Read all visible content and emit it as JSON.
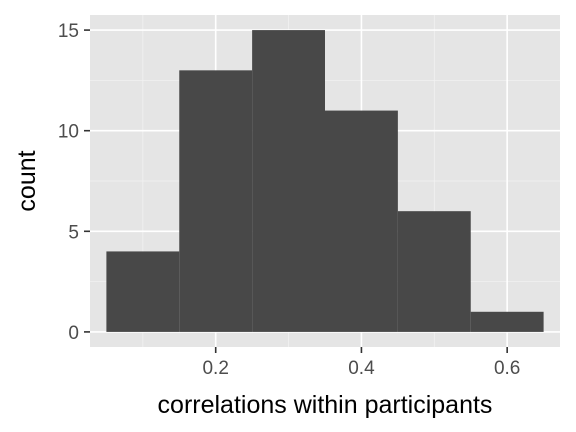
{
  "chart_data": {
    "type": "bar",
    "subtype": "histogram",
    "bins": [
      {
        "x0": 0.05,
        "x1": 0.15,
        "count": 4
      },
      {
        "x0": 0.15,
        "x1": 0.25,
        "count": 13
      },
      {
        "x0": 0.25,
        "x1": 0.35,
        "count": 15
      },
      {
        "x0": 0.35,
        "x1": 0.45,
        "count": 11
      },
      {
        "x0": 0.45,
        "x1": 0.55,
        "count": 6
      },
      {
        "x0": 0.55,
        "x1": 0.65,
        "count": 1
      }
    ],
    "xlabel": "correlations within participants",
    "ylabel": "count",
    "xlim": [
      0.0275,
      0.6725
    ],
    "ylim": [
      -0.75,
      15.75
    ],
    "xticks": [
      0.2,
      0.4,
      0.6
    ],
    "xtick_labels": [
      "0.2",
      "0.4",
      "0.6"
    ],
    "yticks": [
      0,
      5,
      10,
      15
    ],
    "ytick_labels": [
      "0",
      "5",
      "10",
      "15"
    ],
    "grid": true,
    "theme": "ggplot2 grey"
  },
  "colors": {
    "panel_background": "#e5e5e5",
    "grid_major": "#ffffff",
    "grid_minor": "#f2f2f2",
    "bar_fill": "#484848",
    "tick_mark": "#333333",
    "tick_text": "#4d4d4d",
    "axis_title": "#000000"
  }
}
